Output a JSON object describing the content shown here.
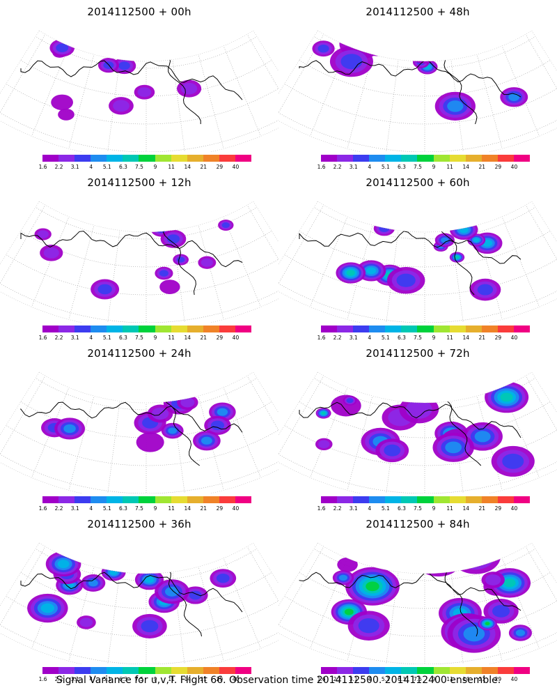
{
  "colorbar": {
    "labels": [
      "1.6",
      "2.2",
      "3.1",
      "4",
      "5.1",
      "6.3",
      "7.5",
      "9",
      "11",
      "14",
      "21",
      "29",
      "40"
    ],
    "colors": [
      "#a000c8",
      "#8c28e6",
      "#3c3cf0",
      "#1e8cf0",
      "#00b4e6",
      "#00c8b4",
      "#00d23c",
      "#a0e632",
      "#e6dc32",
      "#e6af2d",
      "#f08228",
      "#fa3c3c",
      "#f00082"
    ]
  },
  "panels": [
    {
      "title": "2014112500 + 00h",
      "intensity": 0.25
    },
    {
      "title": "2014112500 + 48h",
      "intensity": 0.6
    },
    {
      "title": "2014112500 + 12h",
      "intensity": 0.35
    },
    {
      "title": "2014112500 + 60h",
      "intensity": 0.65
    },
    {
      "title": "2014112500 + 24h",
      "intensity": 0.45
    },
    {
      "title": "2014112500 + 72h",
      "intensity": 0.75
    },
    {
      "title": "2014112500 + 36h",
      "intensity": 0.55
    },
    {
      "title": "2014112500 + 84h",
      "intensity": 0.85
    }
  ],
  "caption": "Signal Variance for u,v,T. Flight 66. Observation time 2014112500. 2014112400 ensemble."
}
